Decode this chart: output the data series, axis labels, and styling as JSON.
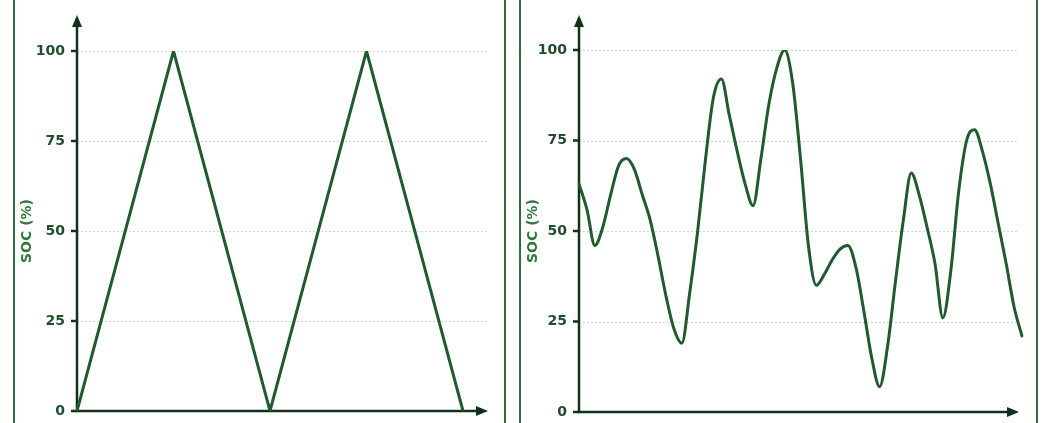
{
  "chart_data": [
    {
      "type": "line",
      "ylabel": "SOC (%)",
      "categories": [
        null,
        null,
        null,
        null,
        null
      ],
      "series": [
        {
          "color": "#1e5b2d",
          "values": [
            0,
            100,
            0,
            100,
            0
          ]
        }
      ],
      "ylim": [
        0,
        100
      ],
      "yticks": [
        0,
        25,
        50,
        75,
        100
      ],
      "grid": "y",
      "tick_labels": "y",
      "marker": "none"
    },
    {
      "type": "line",
      "ylabel": "SOC (%)",
      "categories": [
        null,
        null,
        null,
        null,
        null,
        null,
        null,
        null,
        null,
        null,
        null,
        null,
        null,
        null,
        null,
        null,
        null,
        null,
        null,
        null,
        null,
        null,
        null,
        null,
        null,
        null,
        null,
        null,
        null,
        null,
        null,
        null,
        null,
        null,
        null,
        null,
        null,
        null,
        null,
        null,
        null,
        null,
        null,
        null,
        null,
        null,
        null,
        null,
        null,
        null,
        null,
        null,
        null,
        null,
        null,
        null,
        null
      ],
      "series": [
        {
          "color": "#1e5b2d",
          "values": [
            63,
            56,
            46,
            51,
            60,
            68,
            70,
            67,
            60,
            53,
            43,
            32,
            23,
            19,
            33,
            50,
            70,
            87,
            92,
            82,
            72,
            63,
            57,
            70,
            85,
            95,
            100,
            91,
            70,
            46,
            35,
            38,
            42,
            45,
            46,
            40,
            28,
            15,
            7,
            18,
            36,
            53,
            66,
            60,
            51,
            41,
            26,
            39,
            61,
            75,
            78,
            72,
            63,
            52,
            41,
            29,
            21
          ]
        }
      ],
      "ylim": [
        0,
        100
      ],
      "yticks": [
        0,
        25,
        50,
        75,
        100
      ],
      "grid": "y",
      "tick_labels": "y",
      "marker": "none"
    }
  ]
}
